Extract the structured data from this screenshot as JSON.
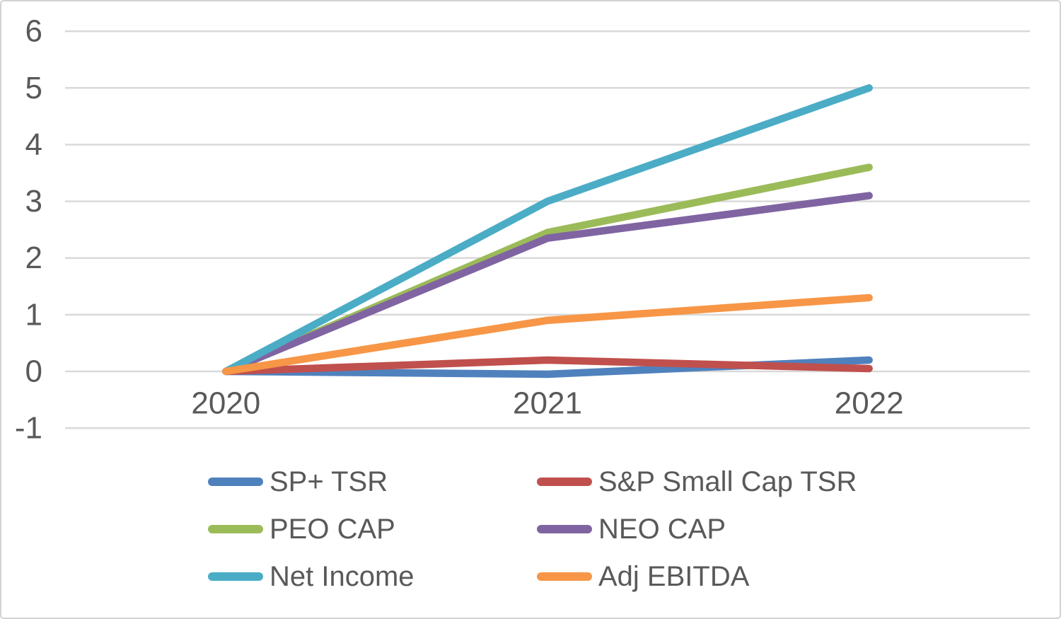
{
  "chart_data": {
    "type": "line",
    "categories": [
      "2020",
      "2021",
      "2022"
    ],
    "series": [
      {
        "name": "SP+ TSR",
        "color": "#4F81BD",
        "values": [
          0,
          -0.05,
          0.2
        ]
      },
      {
        "name": "S&P Small Cap TSR",
        "color": "#C0504D",
        "values": [
          0,
          0.2,
          0.05
        ]
      },
      {
        "name": "PEO CAP",
        "color": "#9BBB59",
        "values": [
          0,
          2.45,
          3.6
        ]
      },
      {
        "name": "NEO CAP",
        "color": "#8064A2",
        "values": [
          0,
          2.35,
          3.1
        ]
      },
      {
        "name": "Net Income",
        "color": "#4BACC6",
        "values": [
          0,
          3.0,
          5.0
        ]
      },
      {
        "name": "Adj EBITDA",
        "color": "#F79646",
        "values": [
          0,
          0.9,
          1.3
        ]
      }
    ],
    "y_ticks": [
      6,
      5,
      4,
      3,
      2,
      1,
      0,
      -1
    ],
    "ylim": [
      -1,
      6
    ],
    "grid": true,
    "legend_position": "bottom",
    "legend_columns": 2,
    "axis_label_color": "#595959",
    "gridline_color": "#d9d9d9",
    "background": "#ffffff"
  }
}
